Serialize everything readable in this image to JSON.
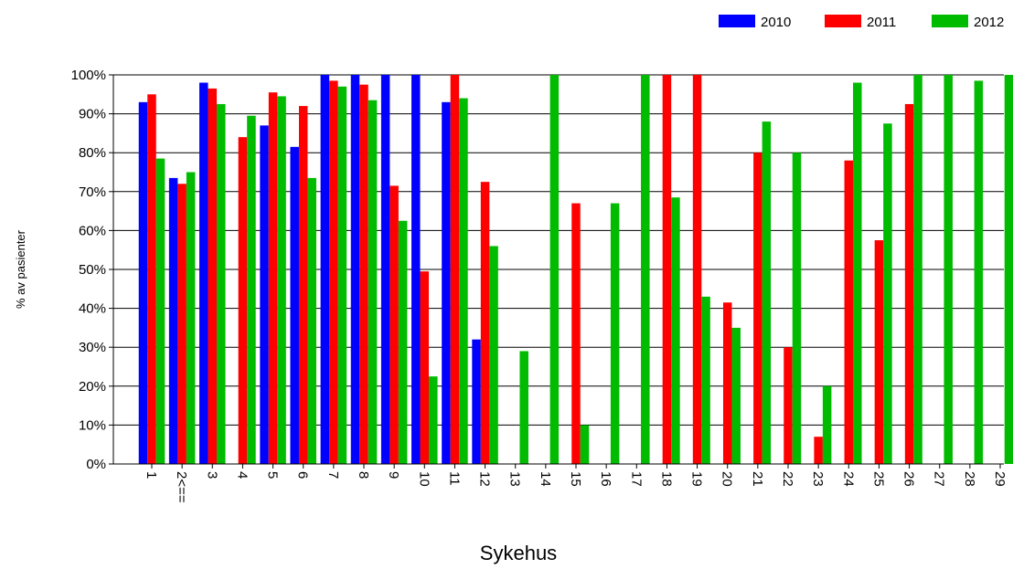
{
  "chart_data": {
    "type": "bar",
    "title": "",
    "xlabel": "Sykehus",
    "ylabel": "% av pasienter",
    "ylim": [
      0,
      100
    ],
    "y_ticks": [
      "0%",
      "10%",
      "20%",
      "30%",
      "40%",
      "50%",
      "60%",
      "70%",
      "80%",
      "90%",
      "100%"
    ],
    "grid": true,
    "legend_position": "top-right",
    "categories": [
      "1",
      "2<==",
      "3",
      "4",
      "5",
      "6",
      "7",
      "8",
      "9",
      "10",
      "11",
      "12",
      "13",
      "14",
      "15",
      "16",
      "17",
      "18",
      "19",
      "20",
      "21",
      "22",
      "23",
      "24",
      "25",
      "26",
      "27",
      "28",
      "29"
    ],
    "series": [
      {
        "name": "2010",
        "color": "#0000ff",
        "values": [
          93,
          73.5,
          98,
          null,
          87,
          81.5,
          100,
          100,
          100,
          100,
          93,
          32,
          null,
          null,
          null,
          null,
          null,
          null,
          null,
          null,
          null,
          null,
          null,
          null,
          null,
          null,
          null,
          null,
          null
        ]
      },
      {
        "name": "2011",
        "color": "#ff0000",
        "values": [
          95,
          72,
          96.5,
          84,
          95.5,
          92,
          98.5,
          97.5,
          71.5,
          49.5,
          100,
          72.5,
          null,
          null,
          67,
          null,
          null,
          100,
          100,
          41.5,
          80,
          30,
          7,
          78,
          57.5,
          92.5,
          null,
          null,
          null
        ]
      },
      {
        "name": "2012",
        "color": "#00bb00",
        "values": [
          78.5,
          75,
          92.5,
          89.5,
          94.5,
          73.5,
          97,
          93.5,
          62.5,
          22.5,
          94,
          56,
          29,
          100,
          10,
          67,
          100,
          68.5,
          43,
          35,
          88,
          80,
          20,
          98,
          87.5,
          100,
          100,
          98.5,
          100
        ]
      }
    ]
  }
}
